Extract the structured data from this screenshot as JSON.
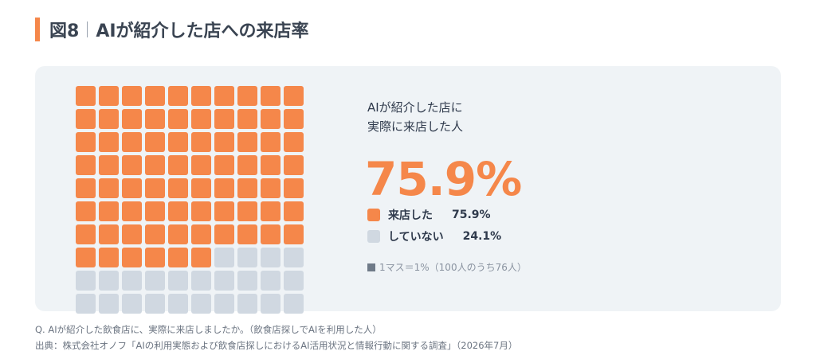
{
  "header": {
    "figure_label": "図8",
    "title": "AIが紹介した店への来店率"
  },
  "info": {
    "heading_line1": "AIが紹介した店に",
    "heading_line2": "実際に来店した人",
    "big_value": "75.9%",
    "note": "1マス＝1%（100人のうち76人）"
  },
  "chart_data": {
    "type": "waffle",
    "total_cells": 100,
    "filled_cells": 76,
    "series": [
      {
        "name": "来店した",
        "value": 75.9,
        "value_label": "75.9%",
        "color": "#f5874a"
      },
      {
        "name": "していない",
        "value": 24.1,
        "value_label": "24.1%",
        "color": "#d0d8e1"
      }
    ]
  },
  "footer": {
    "question": "Q. AIが紹介した飲食店に、実際に来店しましたか。（飲食店探しでAIを利用した人）",
    "source": "出典：株式会社オノフ「AIの利用実態および飲食店探しにおけるAI活用状況と情報行動に関する調査」（2026年7月）"
  },
  "icons": {
    "note_marker": "square-icon"
  }
}
